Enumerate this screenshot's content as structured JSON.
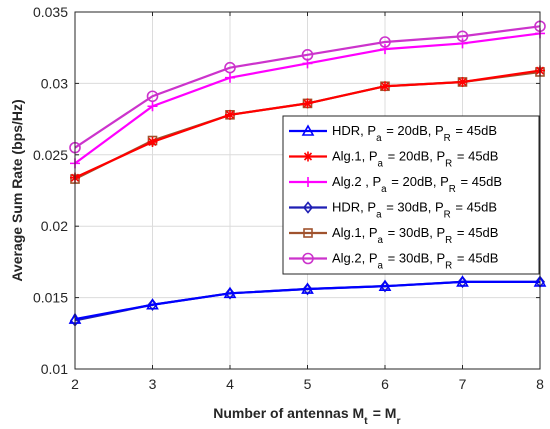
{
  "chart_data": {
    "type": "line",
    "xlabel": "Number of antennas M_t = M_r",
    "ylabel": "Average Sum Rate (bps/Hz)",
    "xlim": [
      2,
      8
    ],
    "ylim": [
      0.01,
      0.035
    ],
    "x": [
      2,
      3,
      4,
      5,
      6,
      7,
      8
    ],
    "xticks": [
      "2",
      "3",
      "4",
      "5",
      "6",
      "7",
      "8"
    ],
    "yticks": [
      "0.01",
      "0.015",
      "0.02",
      "0.025",
      "0.03",
      "0.035"
    ],
    "ytick_values": [
      0.01,
      0.015,
      0.02,
      0.025,
      0.03,
      0.035
    ],
    "grid": true,
    "legend_position": "right",
    "series": [
      {
        "name": "HDR, P_a = 20dB, P_R = 45dB",
        "color": "#0000ff",
        "marker": "triangle",
        "values": [
          0.0135,
          0.0145,
          0.0153,
          0.0156,
          0.0158,
          0.0161,
          0.0161
        ]
      },
      {
        "name": "Alg.1, P_a = 20dB, P_R = 45dB",
        "color": "#ff0000",
        "marker": "asterisk",
        "values": [
          0.0234,
          0.0259,
          0.0278,
          0.0286,
          0.0298,
          0.0301,
          0.0309
        ]
      },
      {
        "name": "Alg.2 , P_a = 20dB, P_R = 45dB",
        "color": "#ff00ff",
        "marker": "plus",
        "values": [
          0.0244,
          0.0284,
          0.0304,
          0.0314,
          0.0324,
          0.0328,
          0.0335
        ]
      },
      {
        "name": "HDR, P_a = 30dB, P_R = 45dB",
        "color": "#1f1fb4",
        "marker": "diamond",
        "values": [
          0.0134,
          0.0145,
          0.0153,
          0.0156,
          0.0158,
          0.0161,
          0.0161
        ]
      },
      {
        "name": "Alg.1, P_a = 30dB, P_R = 45dB",
        "color": "#a0522d",
        "marker": "square",
        "values": [
          0.0233,
          0.026,
          0.0278,
          0.0286,
          0.0298,
          0.0301,
          0.0308
        ]
      },
      {
        "name": "Alg.2, P_a = 30dB, P_R = 45dB",
        "color": "#cc33cc",
        "marker": "circle",
        "values": [
          0.0255,
          0.0291,
          0.0311,
          0.032,
          0.0329,
          0.0333,
          0.034
        ]
      }
    ]
  }
}
